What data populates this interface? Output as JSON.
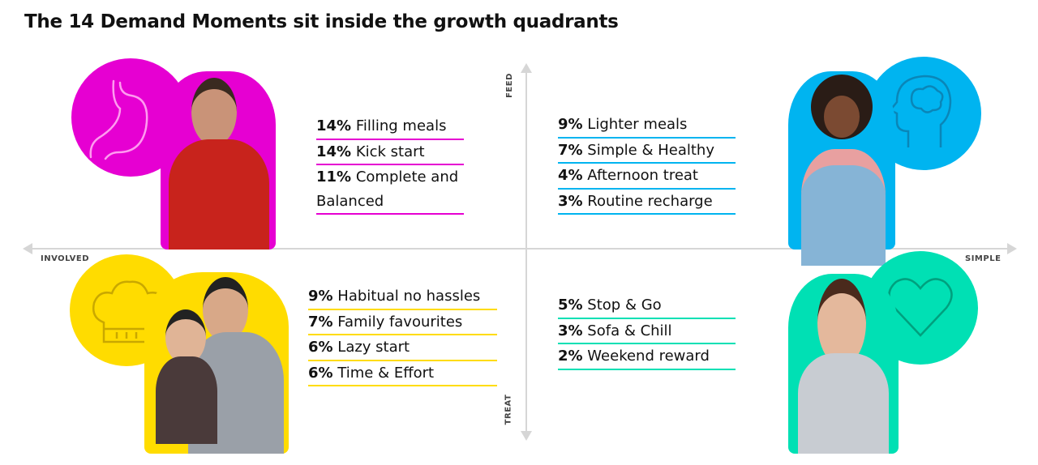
{
  "title": "The 14 Demand Moments sit inside the growth quadrants",
  "axes": {
    "top": "FEED",
    "bottom": "TREAT",
    "left": "INVOLVED",
    "right": "SIMPLE"
  },
  "colors": {
    "feed_involved": "#e600d2",
    "feed_simple": "#00b4f0",
    "treat_involved": "#ffdc00",
    "treat_simple": "#00e0b4",
    "axis": "#d6d6d6"
  },
  "quadrants": {
    "top_left": {
      "icon": "stomach-icon",
      "items": [
        {
          "pct": "14%",
          "label": "Filling meals"
        },
        {
          "pct": "14%",
          "label": "Kick start"
        },
        {
          "pct": "11%",
          "label": "Complete and Balanced"
        }
      ]
    },
    "top_right": {
      "icon": "brain-head-icon",
      "items": [
        {
          "pct": "9%",
          "label": "Lighter meals"
        },
        {
          "pct": "7%",
          "label": "Simple & Healthy"
        },
        {
          "pct": "4%",
          "label": "Afternoon treat"
        },
        {
          "pct": "3%",
          "label": "Routine recharge"
        }
      ]
    },
    "bottom_left": {
      "icon": "chef-hat-icon",
      "items": [
        {
          "pct": "9%",
          "label": "Habitual no hassles"
        },
        {
          "pct": "7%",
          "label": "Family favourites"
        },
        {
          "pct": "6%",
          "label": "Lazy start"
        },
        {
          "pct": "6%",
          "label": "Time & Effort"
        }
      ]
    },
    "bottom_right": {
      "icon": "heart-icon",
      "items": [
        {
          "pct": "5%",
          "label": "Stop & Go"
        },
        {
          "pct": "3%",
          "label": "Sofa & Chill"
        },
        {
          "pct": "2%",
          "label": "Weekend reward"
        }
      ]
    }
  }
}
